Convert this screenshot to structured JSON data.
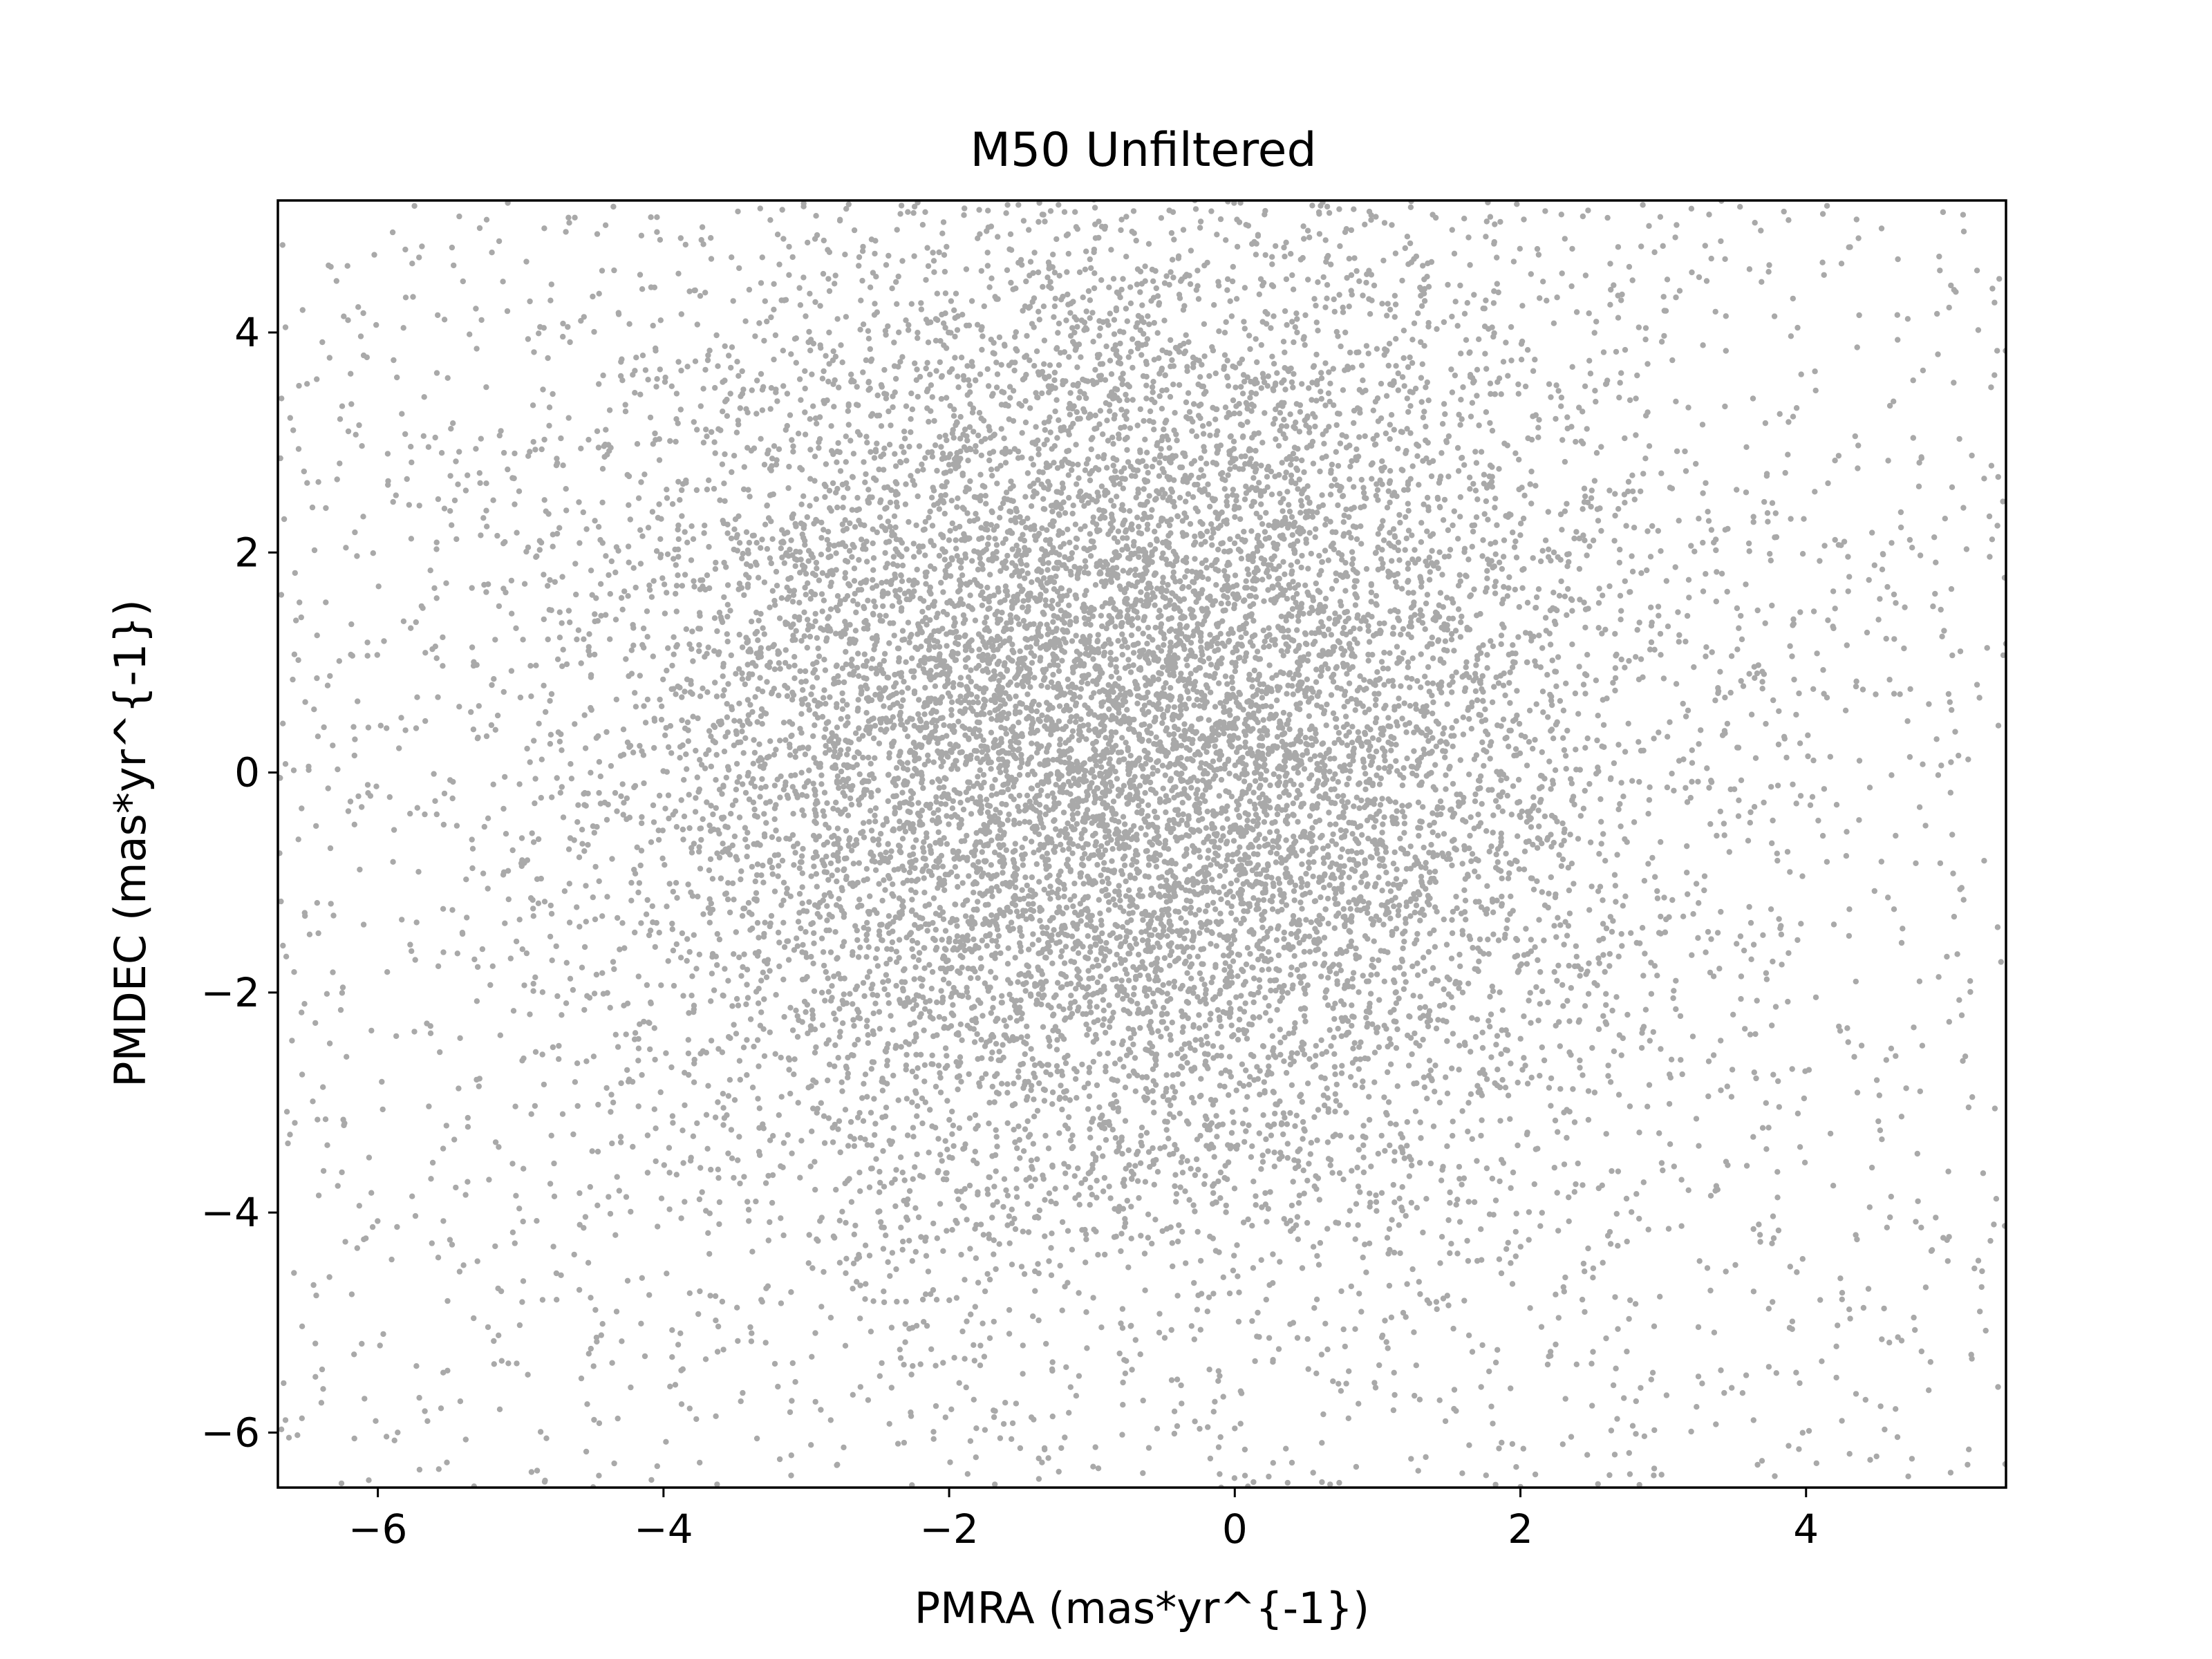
{
  "chart_data": {
    "type": "scatter",
    "title": "M50 Unfiltered",
    "xlabel": "PMRA (mas*yr^{-1})",
    "ylabel": "PMDEC (mas*yr^{-1})",
    "xlim": [
      -6.7,
      5.4
    ],
    "ylim": [
      -6.5,
      5.2
    ],
    "xticks": [
      -6,
      -4,
      -2,
      0,
      2,
      4
    ],
    "yticks": [
      -6,
      -4,
      -2,
      0,
      2,
      4
    ],
    "xtick_labels": [
      "−6",
      "−4",
      "−2",
      "0",
      "2",
      "4"
    ],
    "ytick_labels": [
      "−6",
      "−4",
      "−2",
      "0",
      "2",
      "4"
    ],
    "grid": false,
    "point_color": "#a9a9a9",
    "series": [
      {
        "distribution": "dense elliptical cloud of stars",
        "center": [
          -0.8,
          0.3
        ],
        "core_extent_x": [
          -2.6,
          1.4
        ],
        "core_extent_y": [
          -3.0,
          3.6
        ],
        "spread_sigma_x": 1.8,
        "spread_sigma_y": 2.3,
        "estimated_point_count": 60000
      }
    ]
  }
}
